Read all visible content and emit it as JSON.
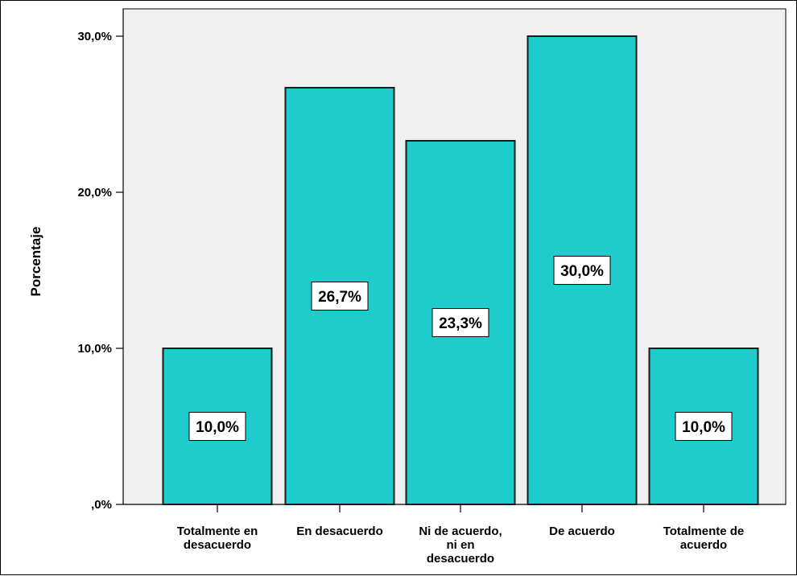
{
  "chart_data": {
    "type": "bar",
    "categories": [
      [
        "Totalmente  en",
        "desacuerdo"
      ],
      [
        "En desacuerdo"
      ],
      [
        "Ni de acuerdo,",
        "ni en",
        "desacuerdo"
      ],
      [
        "De acuerdo"
      ],
      [
        "Totalmente de",
        "acuerdo"
      ]
    ],
    "values": [
      10.0,
      26.7,
      23.3,
      30.0,
      10.0
    ],
    "data_labels": [
      "10,0%",
      "26,7%",
      "23,3%",
      "30,0%",
      "10,0%"
    ],
    "title": "",
    "xlabel": "",
    "ylabel": "Porcentaje",
    "ylim": [
      0,
      30
    ],
    "yticks": [
      0,
      10,
      20,
      30
    ],
    "ytick_labels": [
      ",0%",
      "10,0%",
      "20,0%",
      "30,0%"
    ],
    "grid": false,
    "colors": {
      "bar_fill": "#1fcccc",
      "bar_stroke": "#1a1a1a",
      "plot_background": "#f0f0f0",
      "label_box_fill": "#ffffff"
    }
  }
}
